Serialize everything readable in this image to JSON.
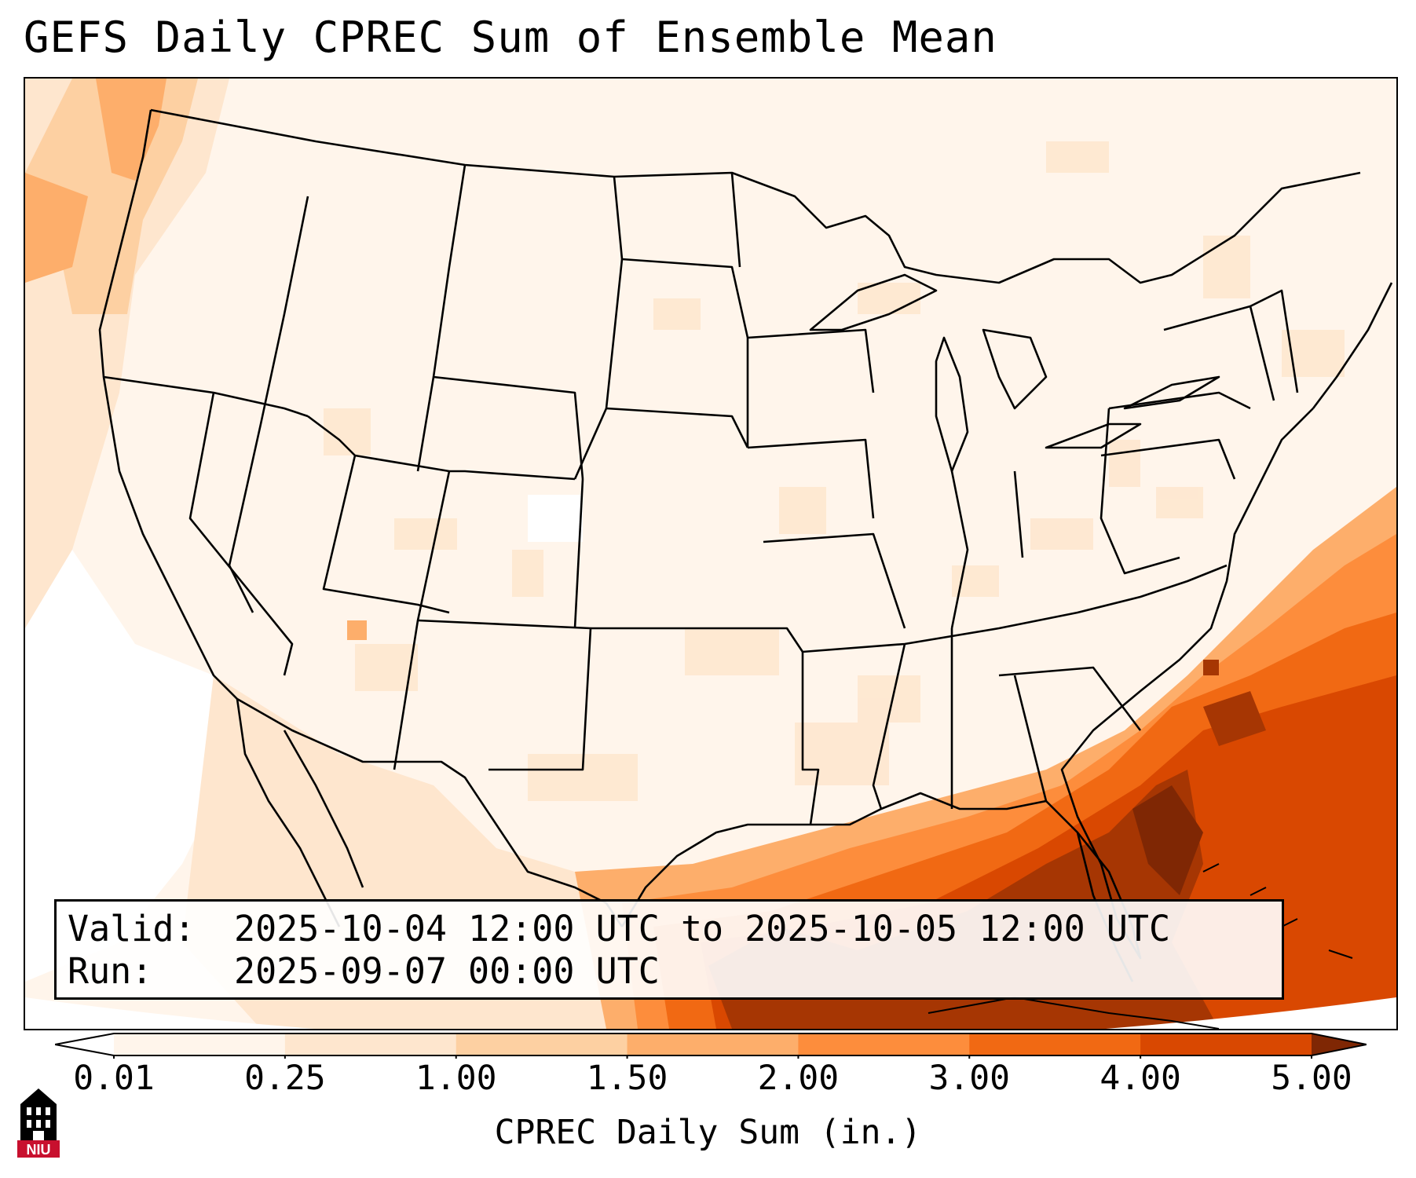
{
  "title": "GEFS Daily CPREC Sum of Ensemble Mean",
  "valid_box": {
    "valid_label": "Valid:",
    "valid_value": "2025-10-04 12:00 UTC to 2025-10-05 12:00 UTC",
    "run_label": "Run:",
    "run_value": "2025-09-07 00:00 UTC"
  },
  "colorbar": {
    "label": "CPREC Daily Sum (in.)",
    "ticks": [
      "0.01",
      "0.25",
      "1.00",
      "1.50",
      "2.00",
      "3.00",
      "4.00",
      "5.00"
    ],
    "colors": [
      "#fff5eb",
      "#fee6ce",
      "#fdd0a2",
      "#fdae6b",
      "#fd8d3c",
      "#f16913",
      "#d94801",
      "#a63603",
      "#7f2704"
    ],
    "under_color": "#ffffff",
    "over_color": "#7f2704",
    "extend": "both"
  },
  "map": {
    "projection": "Lambert conformal",
    "region": "CONUS",
    "features": [
      "state-borders",
      "coastlines",
      "lakes",
      "national-borders"
    ],
    "heaviest_precip_region": "Gulf of Mexico and western Atlantic off Florida"
  },
  "logo": {
    "text": "NIU",
    "colors": {
      "red": "#c8102e",
      "black": "#000000"
    }
  }
}
